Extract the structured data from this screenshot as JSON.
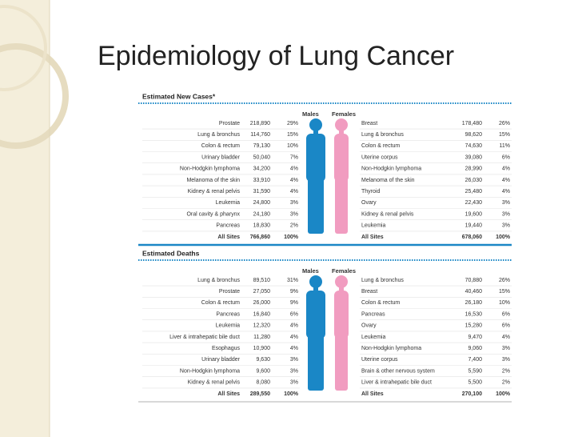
{
  "header": {
    "title": "Epidemiology of Lung Cancer"
  },
  "sections": [
    {
      "title": "Estimated New Cases*",
      "males_label": "Males",
      "females_label": "Females",
      "males": [
        [
          "Prostate",
          "218,890",
          "29%"
        ],
        [
          "Lung & bronchus",
          "114,760",
          "15%"
        ],
        [
          "Colon & rectum",
          "79,130",
          "10%"
        ],
        [
          "Urinary bladder",
          "50,040",
          "7%"
        ],
        [
          "Non-Hodgkin lymphoma",
          "34,200",
          "4%"
        ],
        [
          "Melanoma of the skin",
          "33,910",
          "4%"
        ],
        [
          "Kidney & renal pelvis",
          "31,590",
          "4%"
        ],
        [
          "Leukemia",
          "24,800",
          "3%"
        ],
        [
          "Oral cavity & pharynx",
          "24,180",
          "3%"
        ],
        [
          "Pancreas",
          "18,830",
          "2%"
        ],
        [
          "All Sites",
          "766,860",
          "100%"
        ]
      ],
      "females": [
        [
          "Breast",
          "178,480",
          "26%"
        ],
        [
          "Lung & bronchus",
          "98,620",
          "15%"
        ],
        [
          "Colon & rectum",
          "74,630",
          "11%"
        ],
        [
          "Uterine corpus",
          "39,080",
          "6%"
        ],
        [
          "Non-Hodgkin lymphoma",
          "28,990",
          "4%"
        ],
        [
          "Melanoma of the skin",
          "26,030",
          "4%"
        ],
        [
          "Thyroid",
          "25,480",
          "4%"
        ],
        [
          "Ovary",
          "22,430",
          "3%"
        ],
        [
          "Kidney & renal pelvis",
          "19,600",
          "3%"
        ],
        [
          "Leukemia",
          "19,440",
          "3%"
        ],
        [
          "All Sites",
          "678,060",
          "100%"
        ]
      ]
    },
    {
      "title": "Estimated Deaths",
      "males_label": "Males",
      "females_label": "Females",
      "males": [
        [
          "Lung & bronchus",
          "89,510",
          "31%"
        ],
        [
          "Prostate",
          "27,050",
          "9%"
        ],
        [
          "Colon & rectum",
          "26,000",
          "9%"
        ],
        [
          "Pancreas",
          "16,840",
          "6%"
        ],
        [
          "Leukemia",
          "12,320",
          "4%"
        ],
        [
          "Liver & intrahepatic bile duct",
          "11,280",
          "4%"
        ],
        [
          "Esophagus",
          "10,900",
          "4%"
        ],
        [
          "Urinary bladder",
          "9,630",
          "3%"
        ],
        [
          "Non-Hodgkin lymphoma",
          "9,600",
          "3%"
        ],
        [
          "Kidney & renal pelvis",
          "8,080",
          "3%"
        ],
        [
          "All Sites",
          "289,550",
          "100%"
        ]
      ],
      "females": [
        [
          "Lung & bronchus",
          "70,880",
          "26%"
        ],
        [
          "Breast",
          "40,460",
          "15%"
        ],
        [
          "Colon & rectum",
          "26,180",
          "10%"
        ],
        [
          "Pancreas",
          "16,530",
          "6%"
        ],
        [
          "Ovary",
          "15,280",
          "6%"
        ],
        [
          "Leukemia",
          "9,470",
          "4%"
        ],
        [
          "Non-Hodgkin lymphoma",
          "9,060",
          "3%"
        ],
        [
          "Uterine corpus",
          "7,400",
          "3%"
        ],
        [
          "Brain & other nervous system",
          "5,590",
          "2%"
        ],
        [
          "Liver & intrahepatic bile duct",
          "5,500",
          "2%"
        ],
        [
          "All Sites",
          "270,100",
          "100%"
        ]
      ]
    }
  ]
}
